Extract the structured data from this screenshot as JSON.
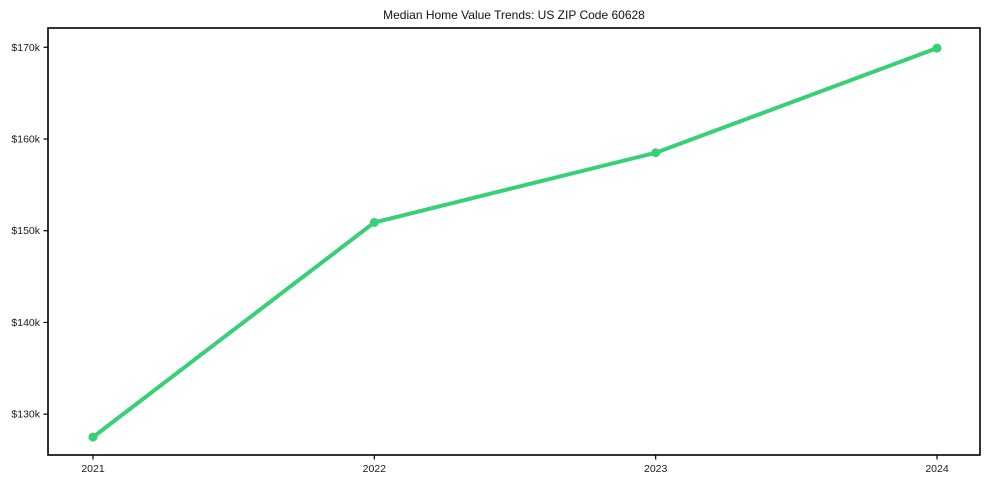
{
  "chart_data": {
    "type": "line",
    "title": "Median Home Value Trends: US ZIP Code 60628",
    "categories": [
      "2021",
      "2022",
      "2023",
      "2024"
    ],
    "values": [
      127500,
      150900,
      158500,
      169900
    ],
    "y_ticks": [
      {
        "value": 130000,
        "label": "$130k"
      },
      {
        "value": 140000,
        "label": "$140k"
      },
      {
        "value": 150000,
        "label": "$150k"
      },
      {
        "value": 160000,
        "label": "$160k"
      },
      {
        "value": 170000,
        "label": "$170k"
      }
    ],
    "ylim": [
      125550,
      172100
    ],
    "xlabel": "",
    "ylabel": "",
    "grid": false,
    "legend": false,
    "marker": "circle",
    "line_color": "#38d077",
    "axis_color": "#000000",
    "text_color": "#1a1a1a"
  }
}
